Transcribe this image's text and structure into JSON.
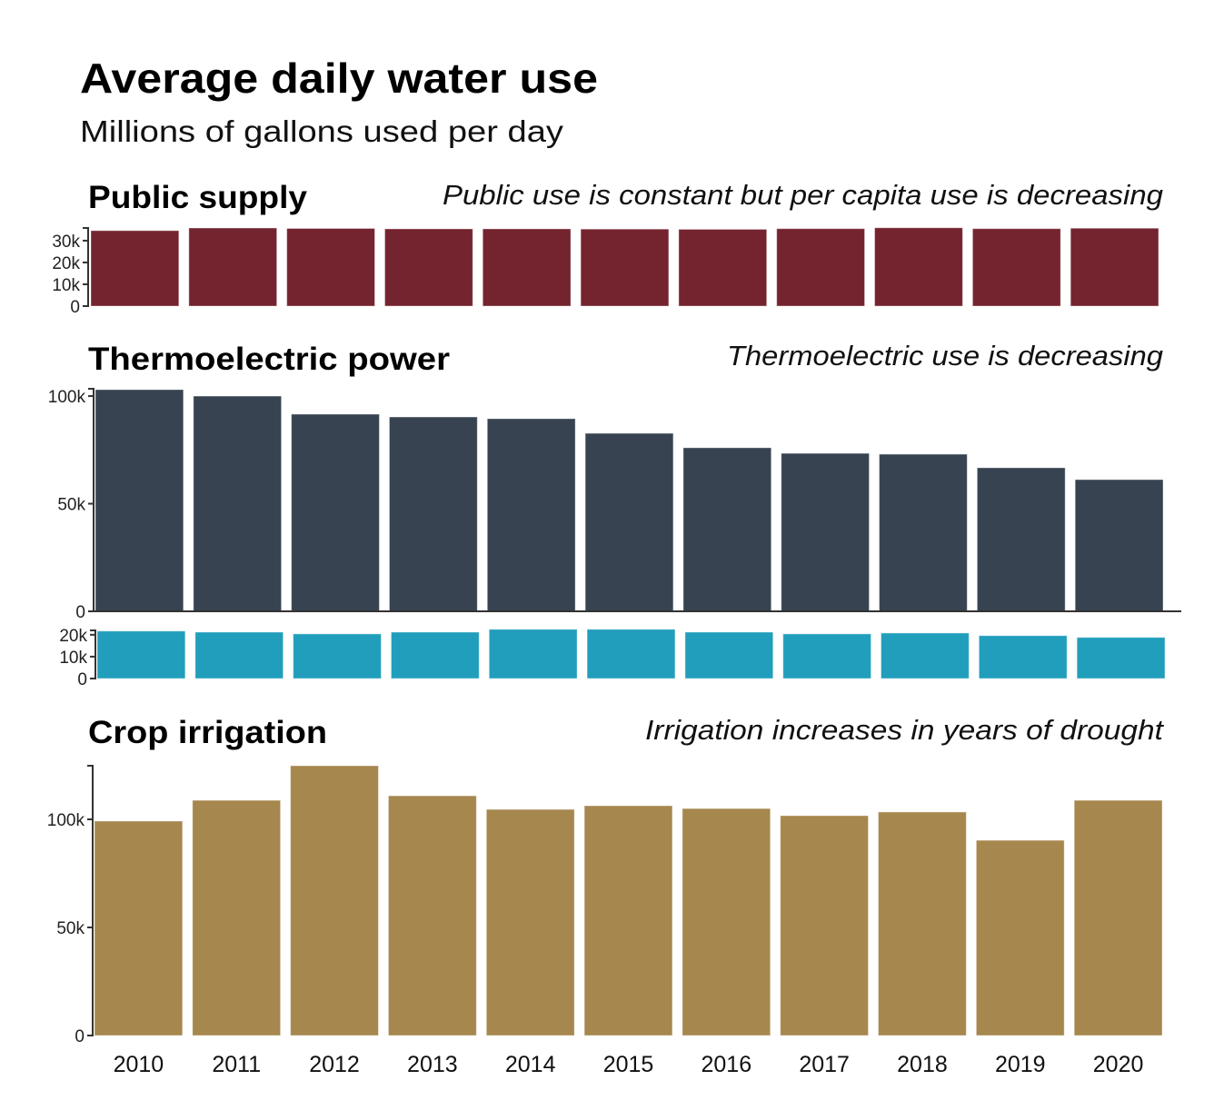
{
  "title": "Average daily water use",
  "subtitle": "Millions of gallons used per day",
  "chart_data": [
    {
      "type": "bar",
      "title": "Public supply",
      "annotation": "Public use is constant but per capita use is decreasing",
      "color": "#74242f",
      "categories": [
        "2010",
        "2011",
        "2012",
        "2013",
        "2014",
        "2015",
        "2016",
        "2017",
        "2018",
        "2019",
        "2020"
      ],
      "values": [
        34600,
        35800,
        35600,
        35400,
        35400,
        35300,
        35200,
        35500,
        35900,
        35500,
        35700
      ],
      "ylim": [
        0,
        35800
      ],
      "yticks": [
        {
          "v": 0,
          "label": "0"
        },
        {
          "v": 10000,
          "label": "10k"
        },
        {
          "v": 20000,
          "label": "20k"
        },
        {
          "v": 30000,
          "label": "30k"
        }
      ]
    },
    {
      "type": "bar",
      "title": "Thermoelectric power",
      "annotation": "Thermoelectric use is decreasing",
      "color": "#374351",
      "categories": [
        "2010",
        "2011",
        "2012",
        "2013",
        "2014",
        "2015",
        "2016",
        "2017",
        "2018",
        "2019",
        "2020"
      ],
      "values": [
        103000,
        100000,
        91600,
        90300,
        89500,
        82700,
        76000,
        73400,
        73000,
        66700,
        61200
      ],
      "ylim": [
        0,
        103400
      ],
      "yticks": [
        {
          "v": 0,
          "label": "0"
        },
        {
          "v": 50000,
          "label": "50k"
        },
        {
          "v": 100000,
          "label": "100k"
        }
      ]
    },
    {
      "type": "bar",
      "title": "",
      "annotation": "",
      "color": "#219ebc",
      "categories": [
        "2010",
        "2011",
        "2012",
        "2013",
        "2014",
        "2015",
        "2016",
        "2017",
        "2018",
        "2019",
        "2020"
      ],
      "values": [
        21700,
        21200,
        20400,
        21200,
        22500,
        22500,
        21200,
        20400,
        20800,
        19600,
        18800
      ],
      "ylim": [
        0,
        22000
      ],
      "yticks": [
        {
          "v": 0,
          "label": "0"
        },
        {
          "v": 10000,
          "label": "10k"
        },
        {
          "v": 20000,
          "label": "20k"
        }
      ]
    },
    {
      "type": "bar",
      "title": "Crop irrigation",
      "annotation": "Irrigation increases in years of drought",
      "color": "#a6874e",
      "categories": [
        "2010",
        "2011",
        "2012",
        "2013",
        "2014",
        "2015",
        "2016",
        "2017",
        "2018",
        "2019",
        "2020"
      ],
      "values": [
        99200,
        108800,
        124800,
        110900,
        104600,
        106300,
        105000,
        101700,
        103400,
        90300,
        108800
      ],
      "ylim": [
        0,
        124800
      ],
      "yticks": [
        {
          "v": 0,
          "label": "0"
        },
        {
          "v": 50000,
          "label": "50k"
        },
        {
          "v": 100000,
          "label": "100k"
        }
      ]
    }
  ]
}
